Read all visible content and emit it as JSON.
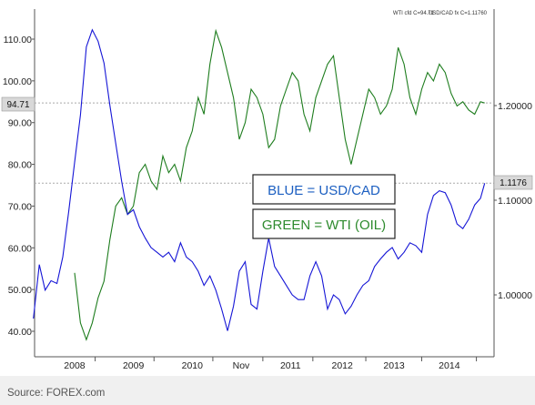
{
  "header": {
    "left_label": "WTI cfd C=94.71",
    "right_label": "USD/CAD fx C=1.11760"
  },
  "annotations": {
    "blue_label": "BLUE = USD/CAD",
    "green_label": "GREEN = WTI (OIL)"
  },
  "source": "Source: FOREX.com",
  "colors": {
    "usdcad": "#1515d6",
    "wti": "#1e7d1e",
    "blue_text": "#1c5fc1",
    "green_text": "#2e8b2e",
    "reference_line": "#aaaaaa",
    "bottom_band": "#f0f0f0"
  },
  "chart_data": {
    "type": "line",
    "title": "",
    "x_tick_labels": [
      "2008",
      "2009",
      "2010",
      "Nov",
      "2011",
      "2012",
      "2013",
      "2014"
    ],
    "left_axis": {
      "series": "WTI cfd",
      "ticks": [
        110.0,
        100.0,
        90.0,
        80.0,
        70.0,
        60.0,
        50.0,
        40.0
      ],
      "tick_labels": [
        "110.00",
        "100.00",
        "90.00",
        "80.00",
        "70.00",
        "60.00",
        "50.00",
        "40.00"
      ],
      "ylim": [
        34.9,
        116.2
      ]
    },
    "right_axis": {
      "series": "USD/CAD fx",
      "ticks": [
        1.2,
        1.1,
        1.0
      ],
      "tick_labels": [
        "1.20000",
        "1.10000",
        "1.00000"
      ]
    },
    "last_values": {
      "wti": "94.71",
      "usdcad": "1.1176"
    },
    "series": [
      {
        "name": "USD/CAD",
        "axis": "right",
        "x": [
          2006.95,
          2007.05,
          2007.15,
          2007.25,
          2007.35,
          2007.45,
          2007.55,
          2007.65,
          2007.75,
          2007.85,
          2007.95,
          2008.05,
          2008.15,
          2008.25,
          2008.35,
          2008.45,
          2008.55,
          2008.65,
          2008.75,
          2008.85,
          2008.95,
          2009.05,
          2009.15,
          2009.25,
          2009.35,
          2009.45,
          2009.55,
          2009.65,
          2009.75,
          2009.85,
          2009.95,
          2010.05,
          2010.15,
          2010.25,
          2010.35,
          2010.45,
          2010.55,
          2010.65,
          2010.75,
          2010.85,
          2010.95,
          2011.05,
          2011.15,
          2011.25,
          2011.35,
          2011.45,
          2011.55,
          2011.65,
          2011.75,
          2011.85,
          2011.95,
          2012.05,
          2012.15,
          2012.25,
          2012.35,
          2012.45,
          2012.55,
          2012.65,
          2012.75,
          2012.85,
          2012.95,
          2013.05,
          2013.15,
          2013.25,
          2013.35,
          2013.45,
          2013.55,
          2013.65,
          2013.75,
          2013.85,
          2013.95,
          2014.05,
          2014.15,
          2014.25,
          2014.35,
          2014.45,
          2014.55,
          2014.62
        ],
        "values": [
          0.975,
          1.032,
          1.005,
          1.015,
          1.012,
          1.04,
          1.088,
          1.14,
          1.19,
          1.262,
          1.28,
          1.268,
          1.245,
          1.2,
          1.16,
          1.12,
          1.085,
          1.09,
          1.072,
          1.06,
          1.05,
          1.045,
          1.04,
          1.045,
          1.035,
          1.055,
          1.04,
          1.035,
          1.025,
          1.01,
          1.02,
          1.005,
          0.985,
          0.962,
          0.988,
          1.025,
          1.035,
          0.99,
          0.985,
          1.025,
          1.06,
          1.03,
          1.02,
          1.01,
          1.0,
          0.995,
          0.995,
          1.02,
          1.035,
          1.02,
          0.985,
          1.0,
          0.995,
          0.98,
          0.988,
          1.0,
          1.01,
          1.015,
          1.03,
          1.038,
          1.045,
          1.05,
          1.038,
          1.045,
          1.055,
          1.052,
          1.045,
          1.085,
          1.105,
          1.11,
          1.108,
          1.095,
          1.075,
          1.07,
          1.08,
          1.095,
          1.102,
          1.118
        ]
      },
      {
        "name": "WTI (OIL)",
        "axis": "left",
        "x": [
          2007.65,
          2007.75,
          2007.85,
          2007.95,
          2008.05,
          2008.15,
          2008.25,
          2008.35,
          2008.45,
          2008.55,
          2008.65,
          2008.75,
          2008.85,
          2008.95,
          2009.05,
          2009.15,
          2009.25,
          2009.35,
          2009.45,
          2009.55,
          2009.65,
          2009.75,
          2009.85,
          2009.95,
          2010.05,
          2010.15,
          2010.25,
          2010.35,
          2010.45,
          2010.55,
          2010.65,
          2010.75,
          2010.85,
          2010.95,
          2011.05,
          2011.15,
          2011.25,
          2011.35,
          2011.45,
          2011.55,
          2011.65,
          2011.75,
          2011.85,
          2011.95,
          2012.05,
          2012.15,
          2012.25,
          2012.35,
          2012.45,
          2012.55,
          2012.65,
          2012.75,
          2012.85,
          2012.95,
          2013.05,
          2013.15,
          2013.25,
          2013.35,
          2013.45,
          2013.55,
          2013.65,
          2013.75,
          2013.85,
          2013.95,
          2014.05,
          2014.15,
          2014.25,
          2014.35,
          2014.45,
          2014.55,
          2014.62
        ],
        "values": [
          54.0,
          42.0,
          38.0,
          42.0,
          48.0,
          52.0,
          62.0,
          70.0,
          72.0,
          68.0,
          70.0,
          78.0,
          80.0,
          76.0,
          74.0,
          82.0,
          78.0,
          80.0,
          76.0,
          84.0,
          88.0,
          96.0,
          92.0,
          104.0,
          112.0,
          108.0,
          102.0,
          96.0,
          86.0,
          90.0,
          98.0,
          96.0,
          92.0,
          84.0,
          86.0,
          94.0,
          98.0,
          102.0,
          100.0,
          92.0,
          88.0,
          96.0,
          100.0,
          104.0,
          106.0,
          96.0,
          86.0,
          80.0,
          86.0,
          92.0,
          98.0,
          96.0,
          92.0,
          94.0,
          98.0,
          108.0,
          104.0,
          96.0,
          92.0,
          98.0,
          102.0,
          100.0,
          104.0,
          102.0,
          97.0,
          94.0,
          95.0,
          93.0,
          92.0,
          95.0,
          94.71
        ]
      }
    ]
  }
}
